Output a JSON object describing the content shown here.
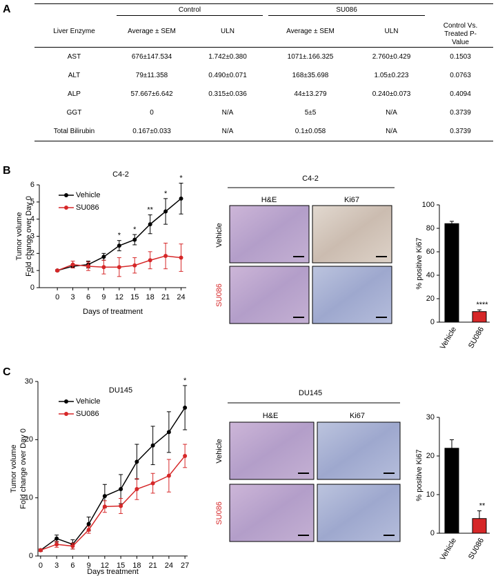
{
  "panel_labels": [
    "A",
    "B",
    "C"
  ],
  "table": {
    "group_headers": [
      "Control",
      "SU086"
    ],
    "pvalue_header": "Control Vs. Treated P-Value",
    "columns": [
      "Liver Enzyme",
      "Average ± SEM",
      "ULN",
      "Average ± SEM",
      "ULN"
    ],
    "rows": [
      [
        "AST",
        "676±147.534",
        "1.742±0.380",
        "1071±.166.325",
        "2.760±0.429",
        "0.1503"
      ],
      [
        "ALT",
        "79±11.358",
        "0.490±0.071",
        "168±35.698",
        "1.05±0.223",
        "0.0763"
      ],
      [
        "ALP",
        "57.667±6.642",
        "0.315±0.036",
        "44±13.279",
        "0.240±0.073",
        "0.4094"
      ],
      [
        "GGT",
        "0",
        "N/A",
        "5±5",
        "N/A",
        "0.3739"
      ],
      [
        "Total Bilirubin",
        "0.167±0.033",
        "N/A",
        "0.1±0.058",
        "N/A",
        "0.3739"
      ]
    ]
  },
  "micrographs": [
    {
      "title": "C4-2",
      "columns": [
        "H&E",
        "Ki67"
      ],
      "rows": [
        "Vehicle",
        "SU086"
      ]
    },
    {
      "title": "DU145",
      "columns": [
        "H&E",
        "Ki67"
      ],
      "rows": [
        "Vehicle",
        "SU086"
      ]
    }
  ],
  "chart_data": [
    {
      "type": "line",
      "title": "C4-2",
      "xlabel": "Days of treatment",
      "ylabel": [
        "Tumor volume",
        "Fold change over Day 0"
      ],
      "x": [
        0,
        3,
        6,
        9,
        12,
        15,
        18,
        21,
        24
      ],
      "series": [
        {
          "name": "Vehicle",
          "color": "#000000",
          "values": [
            1,
            1.25,
            1.35,
            1.8,
            2.45,
            2.8,
            3.7,
            4.45,
            5.2
          ],
          "errors": [
            0.05,
            0.1,
            0.2,
            0.2,
            0.3,
            0.3,
            0.55,
            0.75,
            0.9
          ]
        },
        {
          "name": "SU086",
          "color": "#d62728",
          "values": [
            1,
            1.35,
            1.25,
            1.2,
            1.2,
            1.3,
            1.6,
            1.85,
            1.75
          ],
          "errors": [
            0.05,
            0.2,
            0.25,
            0.4,
            0.55,
            0.45,
            0.5,
            0.75,
            0.8
          ]
        }
      ],
      "xlim": [
        -3.5,
        25
      ],
      "xticks": [
        0,
        3,
        6,
        9,
        12,
        15,
        18,
        21,
        24
      ],
      "ylim": [
        0,
        6
      ],
      "yticks": [
        0,
        1,
        2,
        3,
        4,
        5,
        6
      ],
      "annotations": [
        {
          "x": 12,
          "text": "*"
        },
        {
          "x": 15,
          "text": "*"
        },
        {
          "x": 18,
          "text": "**"
        },
        {
          "x": 21,
          "text": "*"
        },
        {
          "x": 24,
          "text": "*"
        }
      ]
    },
    {
      "type": "bar",
      "ylabel": "% positive Ki67",
      "categories": [
        "Vehicle",
        "SU086"
      ],
      "values": [
        84,
        9
      ],
      "errors": [
        2,
        1.5
      ],
      "colors": [
        "#000000",
        "#d62728"
      ],
      "ylim": [
        0,
        100
      ],
      "yticks": [
        0,
        20,
        40,
        60,
        80,
        100
      ],
      "annotations": [
        {
          "category": "SU086",
          "text": "****"
        }
      ]
    },
    {
      "type": "line",
      "title": "DU145",
      "xlabel": "Days treatment",
      "ylabel": [
        "Tumor volume",
        "Fold change over Day 0"
      ],
      "x": [
        0,
        3,
        6,
        9,
        12,
        15,
        18,
        21,
        24,
        27
      ],
      "series": [
        {
          "name": "Vehicle",
          "color": "#000000",
          "values": [
            1,
            3,
            2,
            5.5,
            10.3,
            11.5,
            16.2,
            19,
            21.3,
            25.5
          ],
          "errors": [
            0.2,
            0.6,
            0.8,
            1.2,
            2,
            2.5,
            3,
            3.3,
            3.5,
            3.8
          ]
        },
        {
          "name": "SU086",
          "color": "#d62728",
          "values": [
            1,
            2,
            1.7,
            4.5,
            8.5,
            8.6,
            11.5,
            12.5,
            13.8,
            17.2
          ],
          "errors": [
            0.2,
            0.5,
            0.5,
            0.6,
            1,
            1.3,
            1.8,
            1.7,
            2.8,
            2
          ]
        }
      ],
      "xlim": [
        -0.5,
        27.5
      ],
      "xticks": [
        0,
        3,
        6,
        9,
        12,
        15,
        18,
        21,
        24,
        27
      ],
      "ylim": [
        0,
        30
      ],
      "yticks": [
        0,
        10,
        20,
        30
      ],
      "annotations": [
        {
          "x": 27,
          "text": "*"
        }
      ]
    },
    {
      "type": "bar",
      "ylabel": "% positive Ki67",
      "categories": [
        "Vehicle",
        "SU086"
      ],
      "values": [
        22,
        3.8
      ],
      "errors": [
        2.2,
        2
      ],
      "colors": [
        "#000000",
        "#d62728"
      ],
      "ylim": [
        0,
        30
      ],
      "yticks": [
        0,
        10,
        20,
        30
      ],
      "annotations": [
        {
          "category": "SU086",
          "text": "**"
        }
      ]
    }
  ]
}
